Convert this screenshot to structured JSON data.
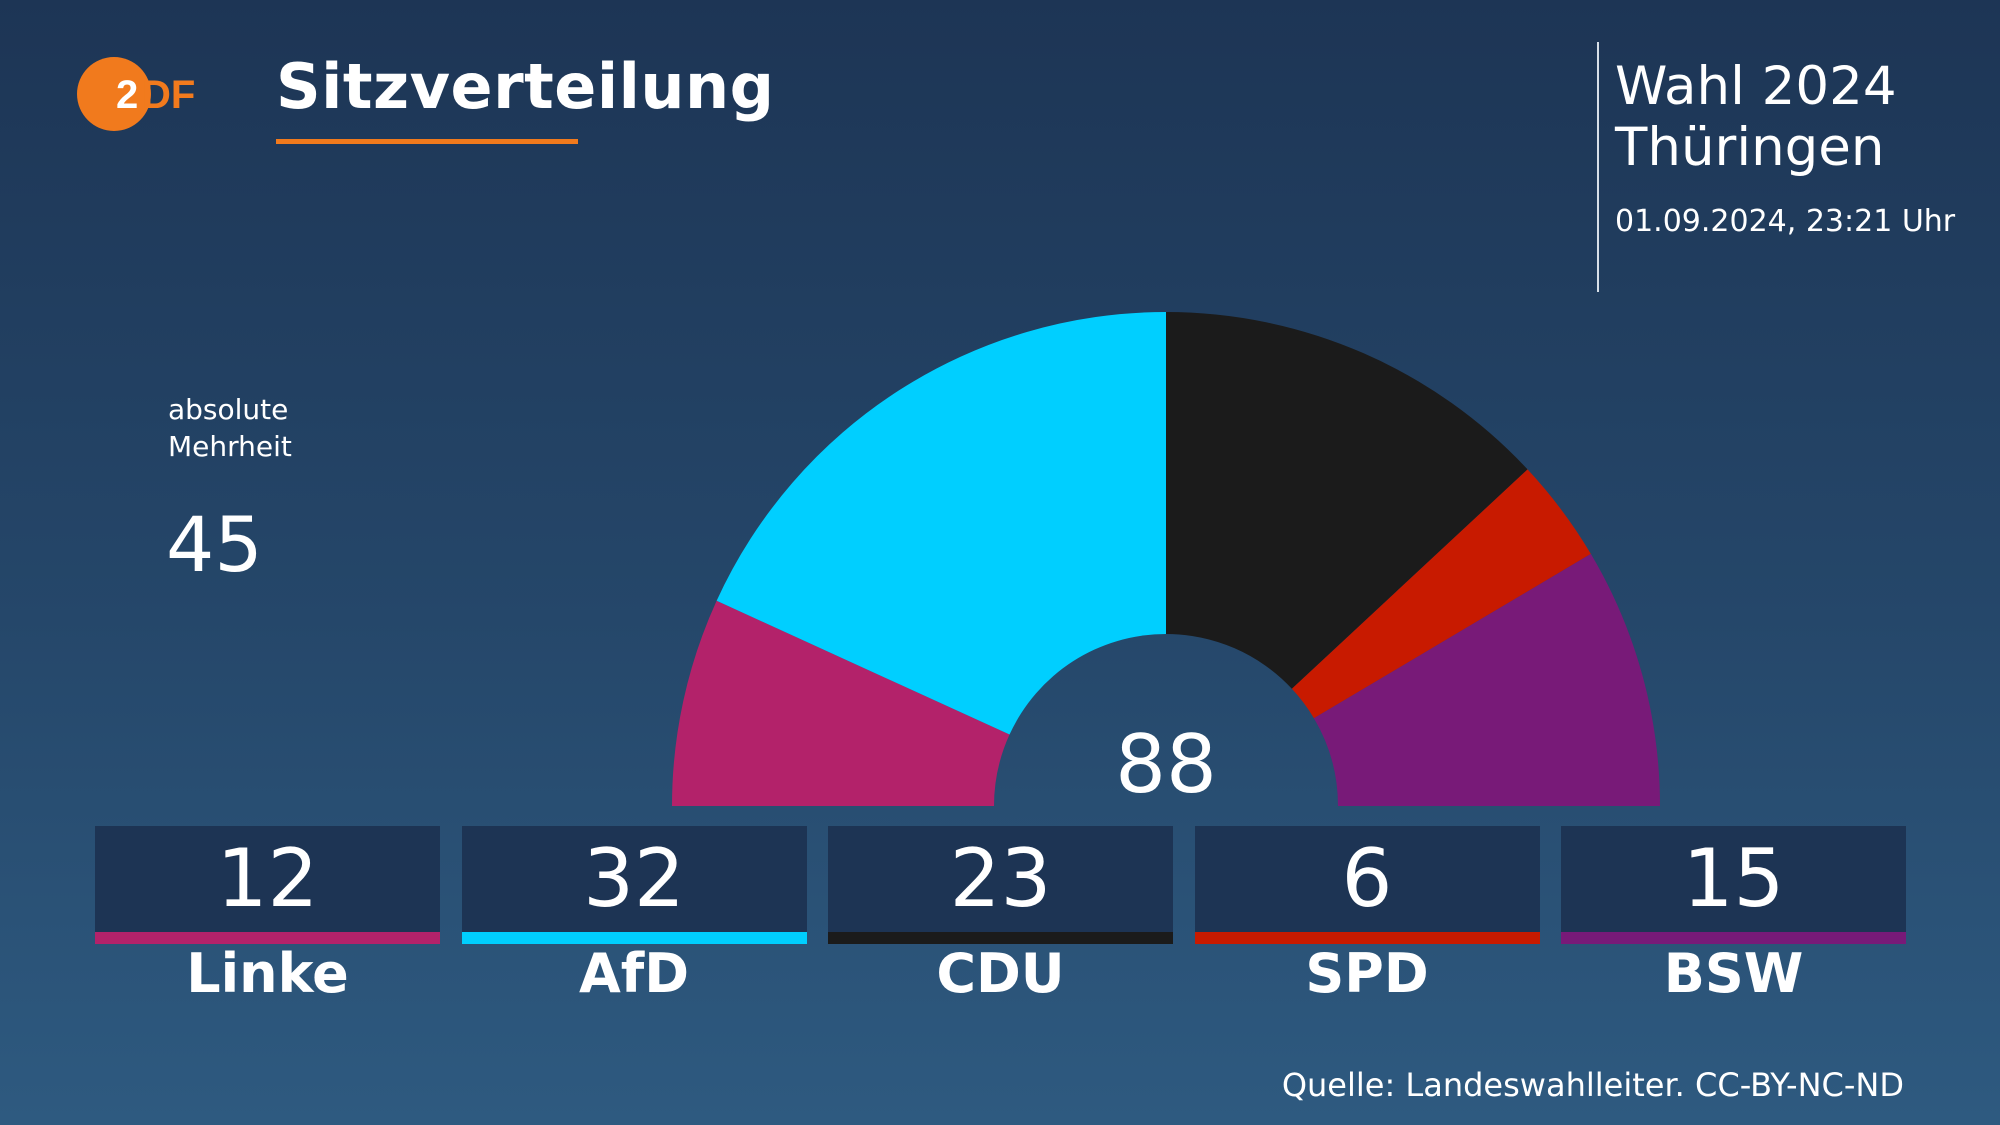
{
  "header": {
    "title": "Sitzverteilung",
    "logo": "ZDF",
    "election": "Wahl 2024",
    "region": "Thüringen",
    "timestamp": "01.09.2024, 23:21 Uhr"
  },
  "majority": {
    "label_line1": "absolute",
    "label_line2": "Mehrheit",
    "value": "45"
  },
  "footer": {
    "source": "Quelle: Landeswahlleiter. CC-BY-NC-ND"
  },
  "colors": {
    "accent": "#f17a1d",
    "linke": "#b3226a",
    "afd": "#00cfff",
    "cdu": "#1b1b1b",
    "spd": "#c81a00",
    "bsw": "#781a78"
  },
  "chart_data": {
    "type": "pie",
    "variant": "parliament-semicircle",
    "title": "Sitzverteilung",
    "total": 88,
    "total_label": "88",
    "majority": 45,
    "series": [
      {
        "name": "Linke",
        "label": "12",
        "value": 12,
        "color": "#b3226a"
      },
      {
        "name": "AfD",
        "label": "32",
        "value": 32,
        "color": "#00cfff"
      },
      {
        "name": "CDU",
        "label": "23",
        "value": 23,
        "color": "#1b1b1b"
      },
      {
        "name": "SPD",
        "label": "6",
        "value": 6,
        "color": "#c81a00"
      },
      {
        "name": "BSW",
        "label": "15",
        "value": 15,
        "color": "#781a78"
      }
    ]
  }
}
